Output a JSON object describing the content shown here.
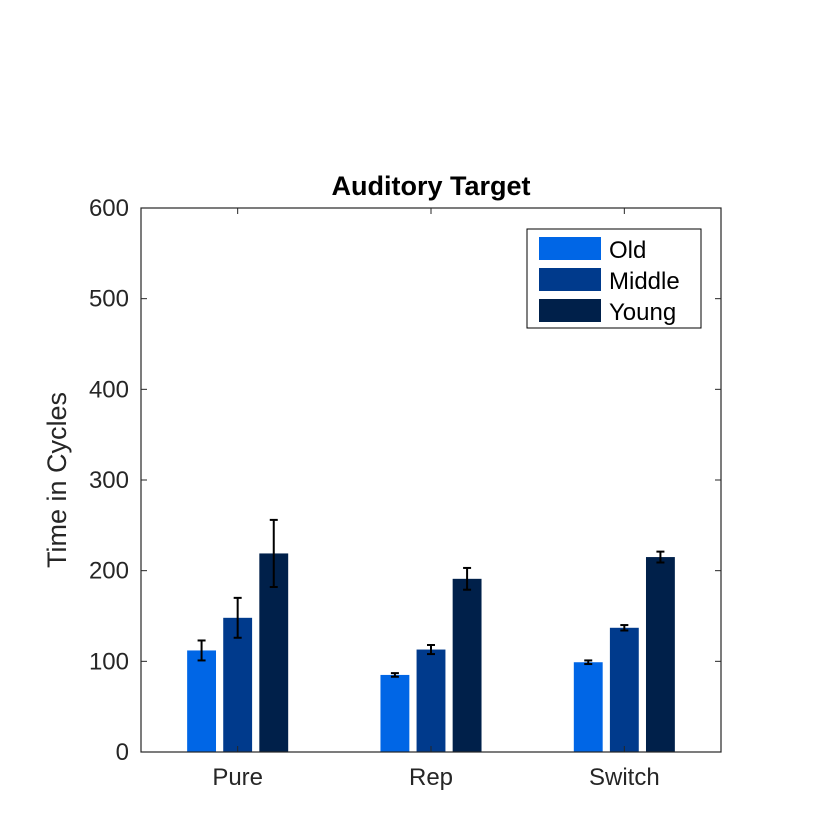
{
  "chart_data": {
    "type": "bar",
    "title": "Auditory Target",
    "xlabel": "",
    "ylabel": "Time in Cycles",
    "categories": [
      "Pure",
      "Rep",
      "Switch"
    ],
    "ylim": [
      0,
      600
    ],
    "yticks": [
      0,
      100,
      200,
      300,
      400,
      500,
      600
    ],
    "grid": false,
    "legend_position": "top-right",
    "series": [
      {
        "name": "Old",
        "color": "#0066e6",
        "values": [
          112,
          85,
          99
        ],
        "errors": [
          11,
          2,
          2
        ]
      },
      {
        "name": "Middle",
        "color": "#003a8c",
        "values": [
          148,
          113,
          137
        ],
        "errors": [
          22,
          5,
          3
        ]
      },
      {
        "name": "Young",
        "color": "#00204a",
        "values": [
          219,
          191,
          215
        ],
        "errors": [
          37,
          12,
          6
        ]
      }
    ]
  }
}
